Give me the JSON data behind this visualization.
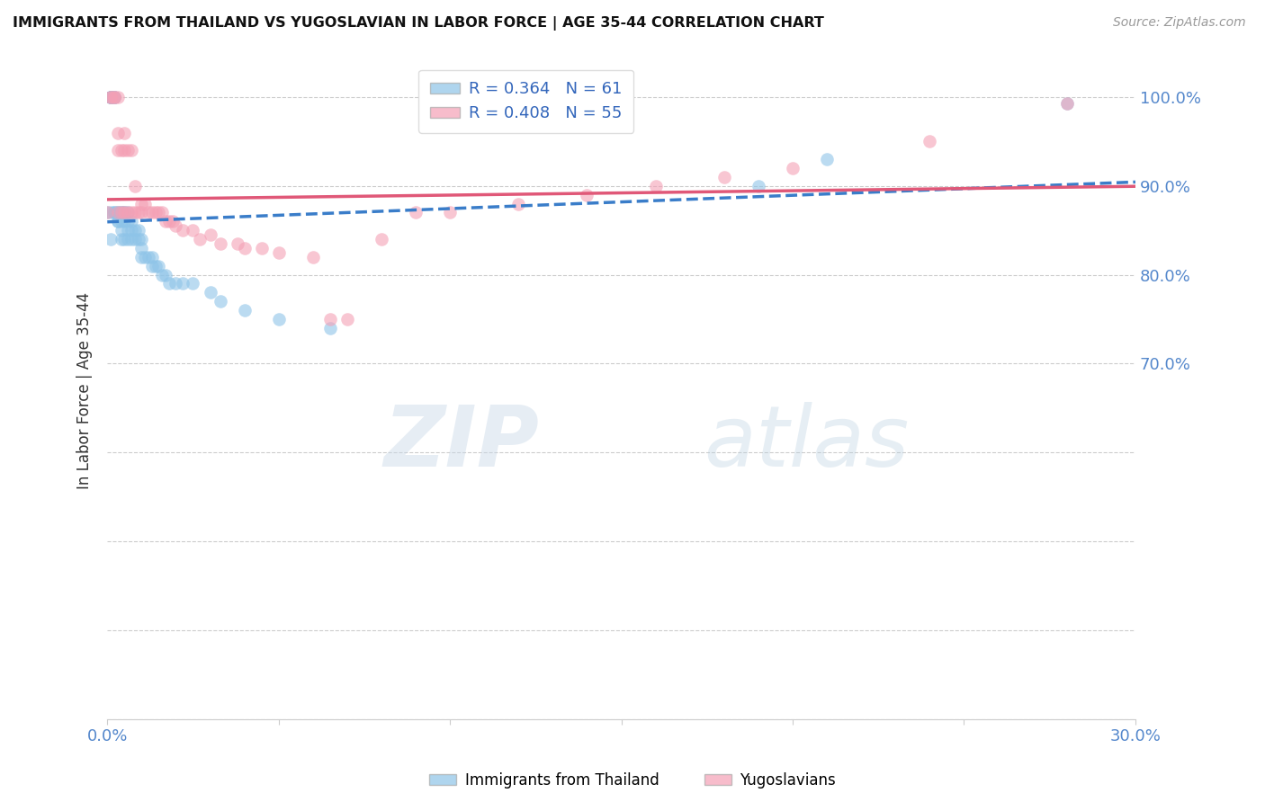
{
  "title": "IMMIGRANTS FROM THAILAND VS YUGOSLAVIAN IN LABOR FORCE | AGE 35-44 CORRELATION CHART",
  "source": "Source: ZipAtlas.com",
  "ylabel": "In Labor Force | Age 35-44",
  "x_min": 0.0,
  "x_max": 0.3,
  "y_min": 0.3,
  "y_max": 1.04,
  "thailand_color": "#8ec4e8",
  "yugoslavian_color": "#f4a0b5",
  "thailand_R": 0.364,
  "thailand_N": 61,
  "yugoslavian_R": 0.408,
  "yugoslavian_N": 55,
  "thailand_line_color": "#3a7dc9",
  "yugoslavian_line_color": "#e05878",
  "watermark_zip": "ZIP",
  "watermark_atlas": "atlas",
  "thailand_x": [
    0.0,
    0.001,
    0.001,
    0.001,
    0.001,
    0.001,
    0.001,
    0.001,
    0.001,
    0.002,
    0.002,
    0.002,
    0.002,
    0.002,
    0.003,
    0.003,
    0.003,
    0.003,
    0.004,
    0.004,
    0.004,
    0.004,
    0.004,
    0.005,
    0.005,
    0.005,
    0.005,
    0.006,
    0.006,
    0.006,
    0.006,
    0.007,
    0.007,
    0.007,
    0.008,
    0.008,
    0.009,
    0.009,
    0.01,
    0.01,
    0.01,
    0.011,
    0.012,
    0.013,
    0.013,
    0.014,
    0.015,
    0.016,
    0.017,
    0.018,
    0.02,
    0.022,
    0.025,
    0.03,
    0.033,
    0.04,
    0.05,
    0.065,
    0.19,
    0.21,
    0.28
  ],
  "thailand_y": [
    0.87,
    1.0,
    1.0,
    1.0,
    1.0,
    1.0,
    1.0,
    0.87,
    0.84,
    1.0,
    1.0,
    1.0,
    0.87,
    0.87,
    0.87,
    0.87,
    0.86,
    0.86,
    0.87,
    0.87,
    0.86,
    0.85,
    0.84,
    0.87,
    0.87,
    0.86,
    0.84,
    0.87,
    0.86,
    0.85,
    0.84,
    0.86,
    0.85,
    0.84,
    0.85,
    0.84,
    0.85,
    0.84,
    0.84,
    0.83,
    0.82,
    0.82,
    0.82,
    0.82,
    0.81,
    0.81,
    0.81,
    0.8,
    0.8,
    0.79,
    0.79,
    0.79,
    0.79,
    0.78,
    0.77,
    0.76,
    0.75,
    0.74,
    0.9,
    0.93,
    0.993
  ],
  "yugoslavian_x": [
    0.0,
    0.001,
    0.001,
    0.002,
    0.002,
    0.003,
    0.003,
    0.003,
    0.003,
    0.004,
    0.004,
    0.005,
    0.005,
    0.005,
    0.006,
    0.006,
    0.007,
    0.007,
    0.008,
    0.008,
    0.009,
    0.01,
    0.01,
    0.011,
    0.012,
    0.013,
    0.014,
    0.015,
    0.016,
    0.017,
    0.018,
    0.019,
    0.02,
    0.022,
    0.025,
    0.027,
    0.03,
    0.033,
    0.038,
    0.04,
    0.045,
    0.05,
    0.06,
    0.065,
    0.07,
    0.08,
    0.09,
    0.1,
    0.12,
    0.14,
    0.16,
    0.18,
    0.2,
    0.24,
    0.28
  ],
  "yugoslavian_y": [
    0.87,
    1.0,
    1.0,
    1.0,
    1.0,
    1.0,
    0.96,
    0.94,
    0.87,
    0.94,
    0.87,
    0.96,
    0.94,
    0.87,
    0.94,
    0.87,
    0.94,
    0.87,
    0.9,
    0.87,
    0.87,
    0.88,
    0.87,
    0.88,
    0.87,
    0.87,
    0.87,
    0.87,
    0.87,
    0.86,
    0.86,
    0.86,
    0.855,
    0.85,
    0.85,
    0.84,
    0.845,
    0.835,
    0.835,
    0.83,
    0.83,
    0.825,
    0.82,
    0.75,
    0.75,
    0.84,
    0.87,
    0.87,
    0.88,
    0.89,
    0.9,
    0.91,
    0.92,
    0.95,
    0.993
  ]
}
